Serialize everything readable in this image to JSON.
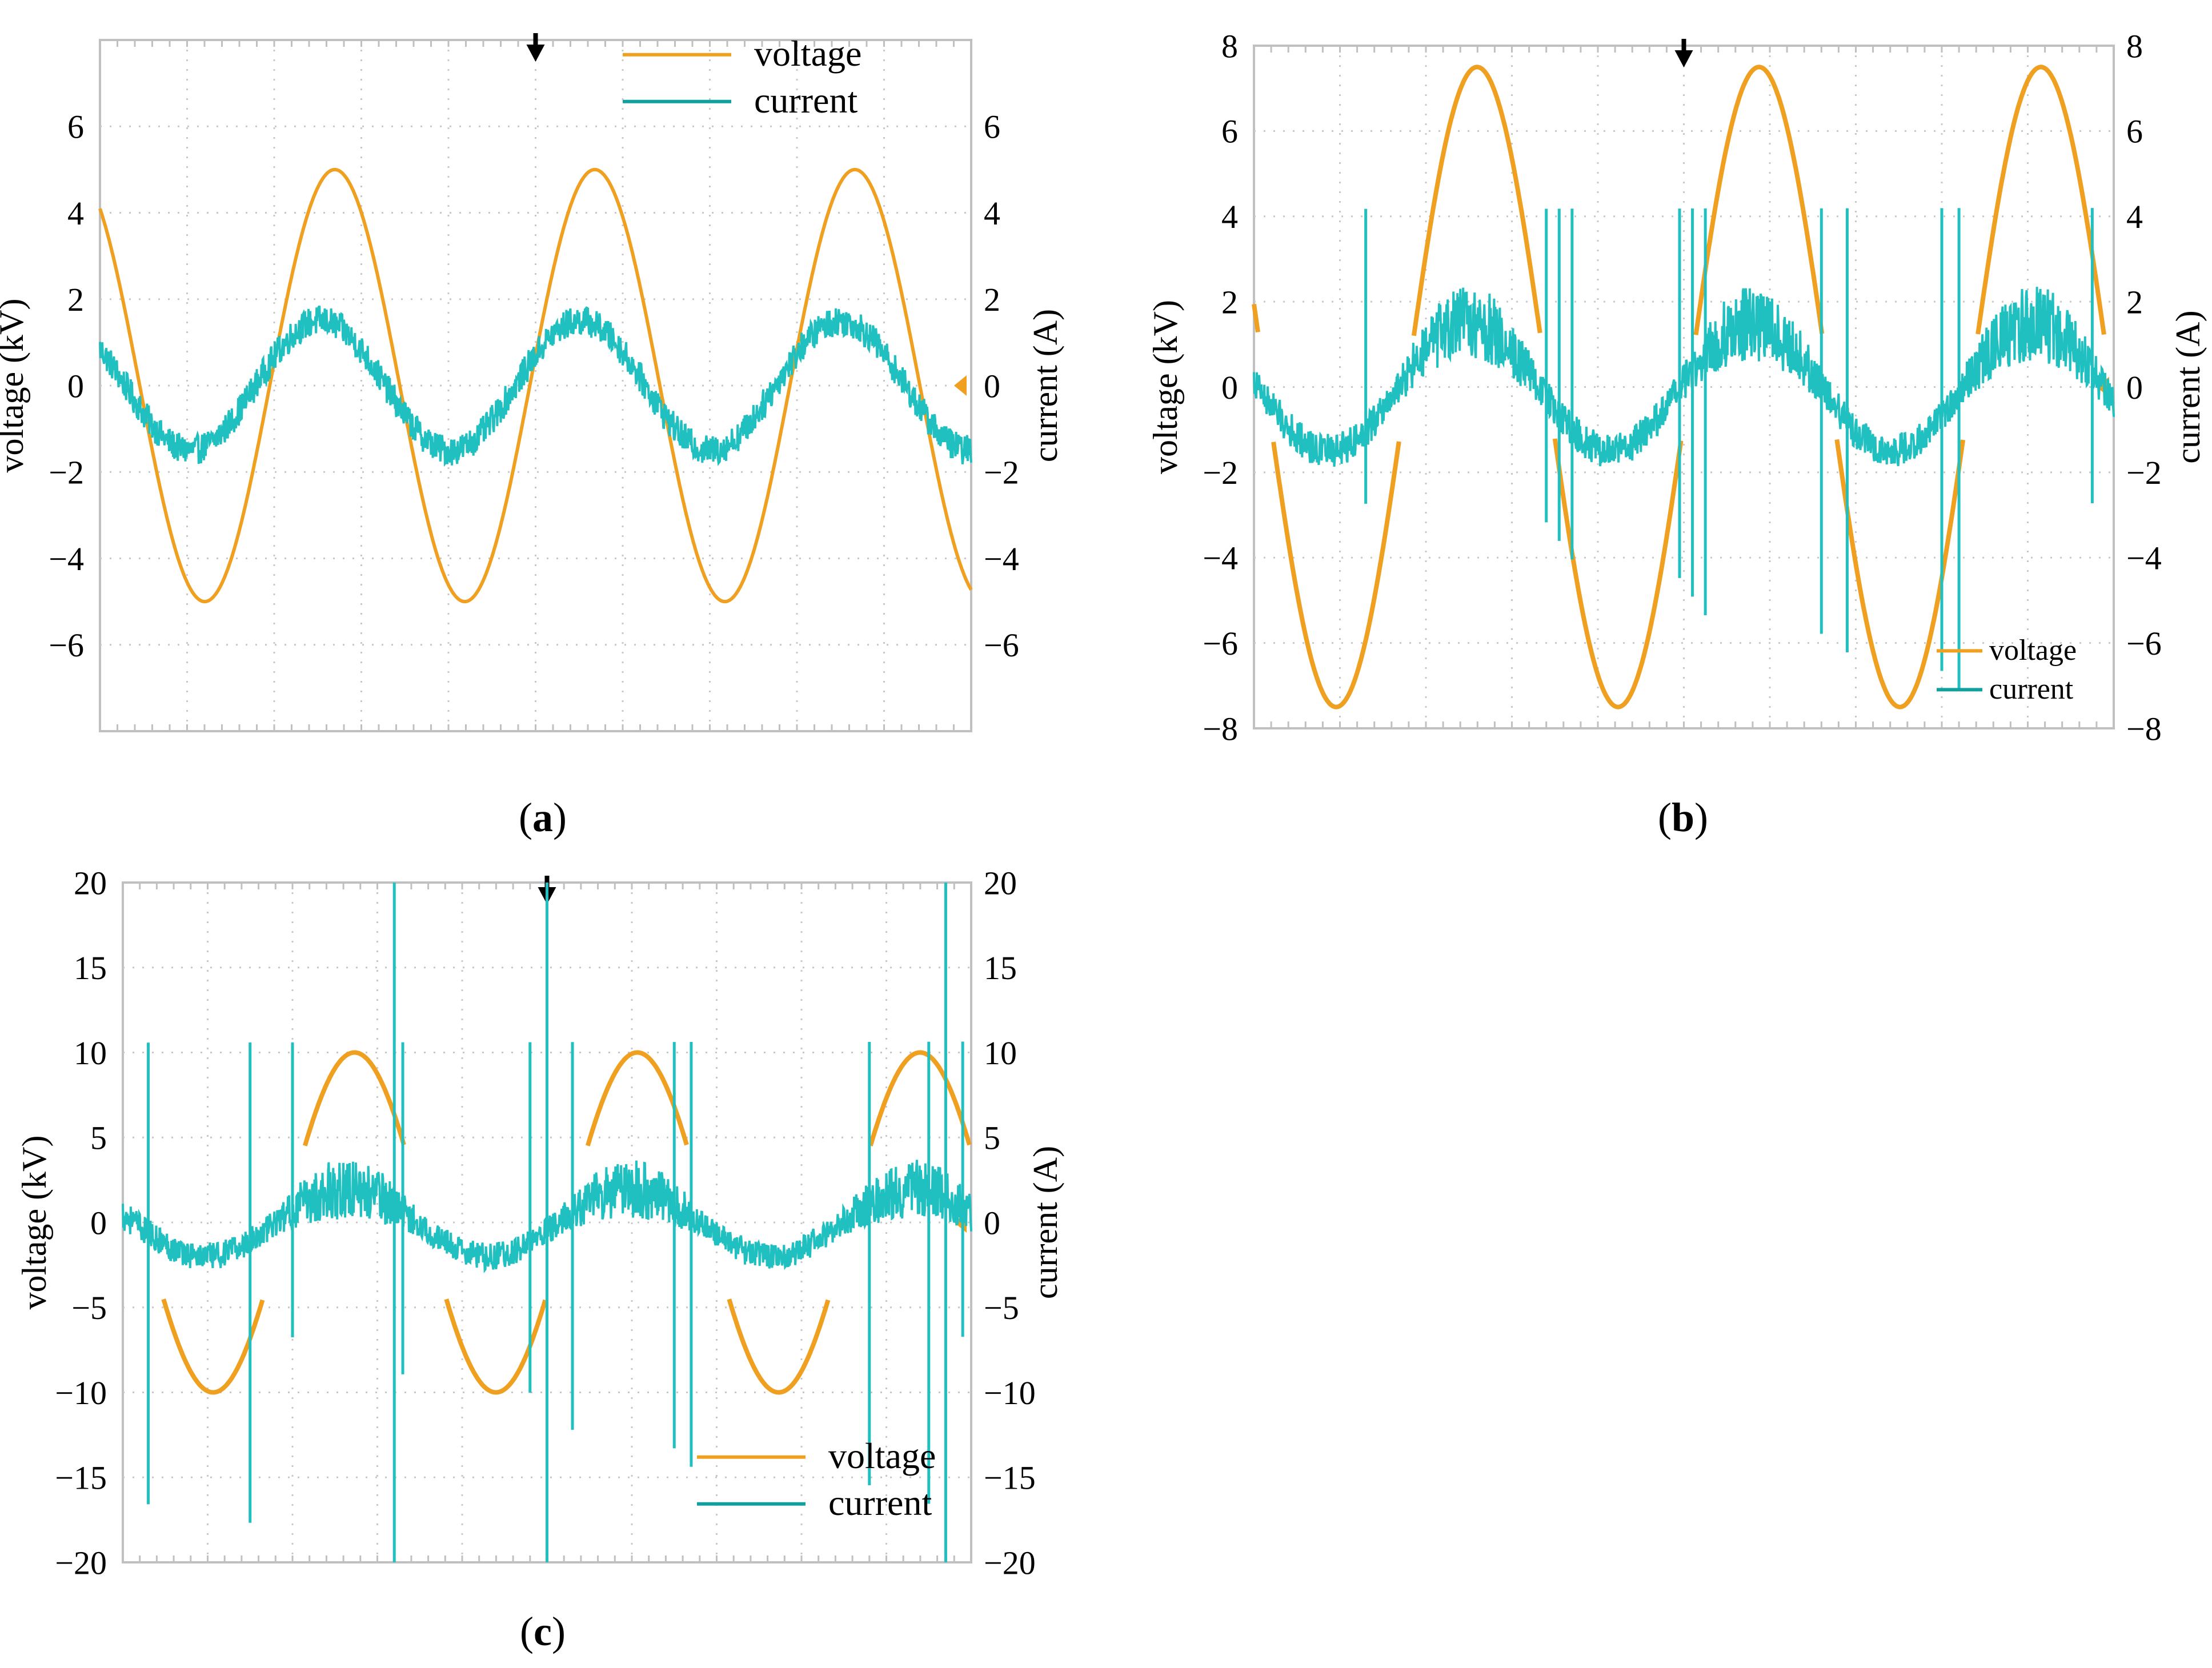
{
  "figure": {
    "captions": [
      "(a)",
      "(b)",
      "(c)"
    ],
    "caption_letters": [
      "a",
      "b",
      "c"
    ]
  },
  "colors": {
    "voltage": "#f0a020",
    "current": "#20c0c0",
    "grid": "#c8c8c8",
    "frame": "#c0c0c0",
    "marker": "#000000"
  },
  "chart_data": [
    {
      "type": "line",
      "panel": "a",
      "title": "",
      "xlabel": "",
      "ylabel": "voltage (kV)",
      "ylabel_right": "current (A)",
      "ylim": [
        -8,
        8
      ],
      "ylim_right": [
        -8,
        8
      ],
      "yticks": [
        -6,
        -4,
        -2,
        0,
        2,
        4,
        6
      ],
      "yticks_right": [
        -6,
        -4,
        -2,
        0,
        2,
        4,
        6
      ],
      "ytick_labels": [
        "−6",
        "−4",
        "−2",
        "0",
        "2",
        "4",
        "6"
      ],
      "ytick_labels_right": [
        "−6",
        "−4",
        "−2",
        "0",
        "2",
        "4",
        "6"
      ],
      "grid": true,
      "x_divisions": 10,
      "y_divisions": 8,
      "cycles": 3.35,
      "legend": [
        "voltage",
        "current"
      ],
      "legend_position": "top-right",
      "series": [
        {
          "name": "voltage",
          "amplitude": 5.0,
          "phase_deg": 125,
          "unit": "kV"
        },
        {
          "name": "current",
          "amplitude": 1.5,
          "phase_deg": 145,
          "noise": 0.35,
          "spikes": [],
          "unit": "A"
        }
      ]
    },
    {
      "type": "line",
      "panel": "b",
      "title": "",
      "xlabel": "",
      "ylabel": "voltage (kV)",
      "ylabel_right": "current (A)",
      "ylim": [
        -8,
        8
      ],
      "ylim_right": [
        -8,
        8
      ],
      "yticks": [
        -8,
        -6,
        -4,
        -2,
        0,
        2,
        4,
        6,
        8
      ],
      "yticks_right": [
        -8,
        -6,
        -4,
        -2,
        0,
        2,
        4,
        6,
        8
      ],
      "ytick_labels": [
        "−8",
        "−6",
        "−4",
        "−2",
        "0",
        "2",
        "4",
        "6",
        "8"
      ],
      "ytick_labels_right": [
        "−8",
        "−6",
        "−4",
        "−2",
        "0",
        "2",
        "4",
        "6",
        "8"
      ],
      "grid": true,
      "x_divisions": 10,
      "y_divisions": 8,
      "cycles": 3.05,
      "legend": [
        "voltage",
        "current"
      ],
      "legend_position": "bottom-right",
      "series": [
        {
          "name": "voltage",
          "amplitude": 7.5,
          "phase_deg": 165,
          "unit": "kV"
        },
        {
          "name": "current",
          "amplitude": 1.5,
          "phase_deg": 175,
          "noise": 0.9,
          "spikes": [
            0.13,
            0.34,
            0.355,
            0.37,
            0.495,
            0.51,
            0.525,
            0.66,
            0.69,
            0.8,
            0.82,
            0.975
          ],
          "unit": "A"
        }
      ]
    },
    {
      "type": "line",
      "panel": "c",
      "title": "",
      "xlabel": "",
      "ylabel": "voltage (kV)",
      "ylabel_right": "current (A)",
      "ylim": [
        -20,
        20
      ],
      "ylim_right": [
        -20,
        20
      ],
      "yticks": [
        -20,
        -15,
        -10,
        -5,
        0,
        5,
        10,
        15,
        20
      ],
      "yticks_right": [
        -20,
        -15,
        -10,
        -5,
        0,
        5,
        10,
        15,
        20
      ],
      "ytick_labels": [
        "−20",
        "−15",
        "−10",
        "−5",
        "0",
        "5",
        "10",
        "15",
        "20"
      ],
      "ytick_labels_right": [
        "−20",
        "−15",
        "−10",
        "−5",
        "0",
        "5",
        "10",
        "15",
        "20"
      ],
      "grid": true,
      "x_divisions": 10,
      "y_divisions": 8,
      "cycles": 3.0,
      "legend": [
        "voltage",
        "current"
      ],
      "legend_position": "bottom-right",
      "series": [
        {
          "name": "voltage",
          "amplitude": 10.0,
          "phase_deg": 155,
          "unit": "kV"
        },
        {
          "name": "current",
          "amplitude": 2.0,
          "phase_deg": 165,
          "noise": 1.8,
          "spikes": [
            0.03,
            0.15,
            0.2,
            0.32,
            0.33,
            0.48,
            0.5,
            0.53,
            0.65,
            0.67,
            0.88,
            0.95,
            0.97,
            0.99
          ],
          "unit": "A"
        }
      ]
    }
  ]
}
